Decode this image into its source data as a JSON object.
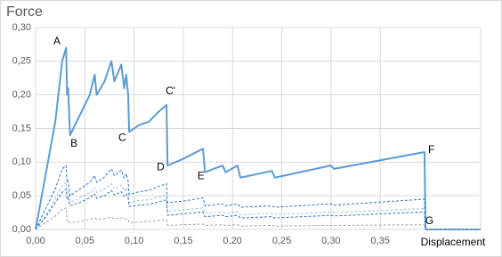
{
  "chart_data": {
    "type": "line",
    "y_label": "Force",
    "x_label": "Displacement",
    "xlim": [
      0,
      0.452
    ],
    "ylim": [
      0,
      0.3
    ],
    "xticks": [
      {
        "value": 0,
        "label": "0,00"
      },
      {
        "value": 0.05,
        "label": "0,05"
      },
      {
        "value": 0.1,
        "label": "0,10"
      },
      {
        "value": 0.15,
        "label": "0,15"
      },
      {
        "value": 0.2,
        "label": "0,20"
      },
      {
        "value": 0.25,
        "label": "0,25"
      },
      {
        "value": 0.3,
        "label": "0,30"
      },
      {
        "value": 0.35,
        "label": "0,35"
      }
    ],
    "yticks": [
      {
        "value": 0,
        "label": "0,00"
      },
      {
        "value": 0.05,
        "label": "0,05"
      },
      {
        "value": 0.1,
        "label": "0,10"
      },
      {
        "value": 0.15,
        "label": "0,15"
      },
      {
        "value": 0.2,
        "label": "0,20"
      },
      {
        "value": 0.25,
        "label": "0,25"
      },
      {
        "value": 0.3,
        "label": "0,30"
      }
    ],
    "grid": true,
    "x": [
      0,
      0.01,
      0.02,
      0.027,
      0.031,
      0.032,
      0.033,
      0.035,
      0.045,
      0.055,
      0.06,
      0.062,
      0.07,
      0.077,
      0.08,
      0.087,
      0.09,
      0.092,
      0.094,
      0.095,
      0.105,
      0.115,
      0.125,
      0.133,
      0.134,
      0.15,
      0.17,
      0.172,
      0.19,
      0.193,
      0.205,
      0.208,
      0.24,
      0.243,
      0.3,
      0.303,
      0.395,
      0.396,
      0.452
    ],
    "series": [
      {
        "color": "#5b9bd5",
        "width": 2,
        "dashed": false,
        "values": [
          0,
          0.08,
          0.16,
          0.25,
          0.27,
          0.2,
          0.21,
          0.14,
          0.17,
          0.2,
          0.23,
          0.2,
          0.22,
          0.25,
          0.22,
          0.245,
          0.21,
          0.23,
          0.2,
          0.145,
          0.155,
          0.16,
          0.175,
          0.185,
          0.095,
          0.105,
          0.12,
          0.085,
          0.095,
          0.085,
          0.095,
          0.077,
          0.087,
          0.077,
          0.095,
          0.09,
          0.115,
          0,
          0
        ]
      },
      {
        "color": "#2e75b6",
        "width": 1,
        "dashed": true,
        "values": [
          0,
          0.03,
          0.06,
          0.09,
          0.095,
          0.07,
          0.072,
          0.05,
          0.06,
          0.07,
          0.08,
          0.07,
          0.078,
          0.09,
          0.08,
          0.088,
          0.076,
          0.083,
          0.072,
          0.052,
          0.056,
          0.058,
          0.064,
          0.068,
          0.04,
          0.042,
          0.047,
          0.035,
          0.038,
          0.035,
          0.038,
          0.033,
          0.035,
          0.033,
          0.038,
          0.036,
          0.045,
          0,
          0
        ]
      },
      {
        "color": "#9dc3e6",
        "width": 1,
        "dashed": true,
        "values": [
          0,
          0.02,
          0.045,
          0.065,
          0.07,
          0.055,
          0.056,
          0.04,
          0.047,
          0.055,
          0.062,
          0.055,
          0.06,
          0.068,
          0.06,
          0.066,
          0.057,
          0.062,
          0.055,
          0.04,
          0.043,
          0.044,
          0.048,
          0.052,
          0.027,
          0.029,
          0.032,
          0.024,
          0.026,
          0.024,
          0.026,
          0.022,
          0.024,
          0.022,
          0.026,
          0.025,
          0.031,
          0,
          0
        ]
      },
      {
        "color": "#2e75b6",
        "width": 1,
        "dashed": true,
        "values": [
          0,
          0.018,
          0.04,
          0.055,
          0.06,
          0.045,
          0.047,
          0.035,
          0.04,
          0.047,
          0.053,
          0.046,
          0.05,
          0.058,
          0.051,
          0.056,
          0.049,
          0.053,
          0.047,
          0.034,
          0.036,
          0.037,
          0.041,
          0.044,
          0.021,
          0.023,
          0.026,
          0.019,
          0.021,
          0.019,
          0.021,
          0.017,
          0.019,
          0.017,
          0.021,
          0.02,
          0.026,
          0,
          0
        ]
      },
      {
        "color": "#a5a5a5",
        "width": 1,
        "dashed": true,
        "values": [
          0,
          0.01,
          0.02,
          0.03,
          0.032,
          0.012,
          0.013,
          0.01,
          0.012,
          0.015,
          0.017,
          0.015,
          0.016,
          0.018,
          0.016,
          0.017,
          0.015,
          0.016,
          0.015,
          0.01,
          0.011,
          0.012,
          0.013,
          0.014,
          0.006,
          0.007,
          0.008,
          0.006,
          0.007,
          0.006,
          0.007,
          0.005,
          0.006,
          0.005,
          0.006,
          0.006,
          0.007,
          0,
          0
        ]
      }
    ],
    "annotations": [
      {
        "text": "A",
        "x": 0.0217,
        "y": 0.279
      },
      {
        "text": "B",
        "x": 0.039,
        "y": 0.127
      },
      {
        "text": "C",
        "x": 0.088,
        "y": 0.136
      },
      {
        "text": "C'",
        "x": 0.137,
        "y": 0.205
      },
      {
        "text": "D",
        "x": 0.127,
        "y": 0.092
      },
      {
        "text": "E",
        "x": 0.168,
        "y": 0.079
      },
      {
        "text": "F",
        "x": 0.402,
        "y": 0.118
      },
      {
        "text": "G",
        "x": 0.4,
        "y": 0.012
      }
    ]
  }
}
